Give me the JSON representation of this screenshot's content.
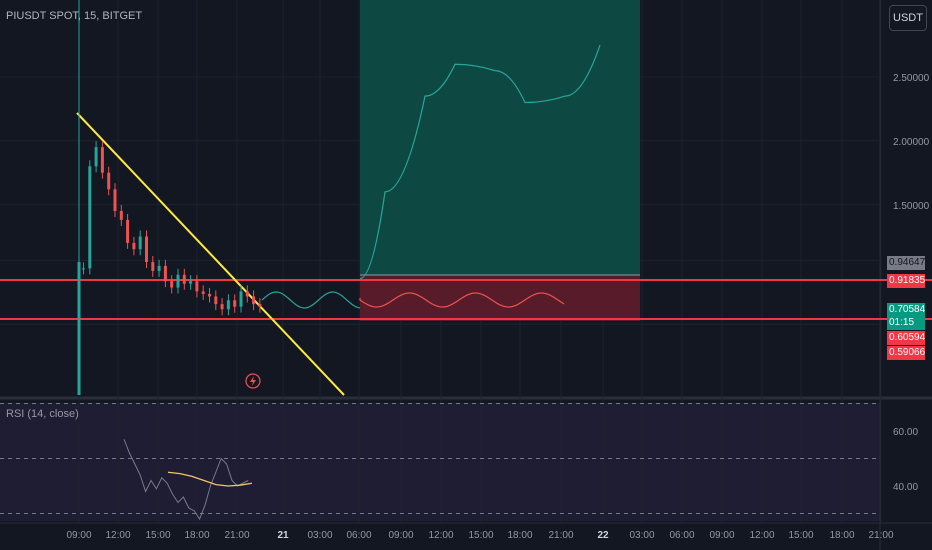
{
  "header": {
    "symbol": "PIUSDT SPOT, 15, BITGET"
  },
  "currency_button": "USDT",
  "rsi": {
    "label": "RSI (14, close)",
    "levels": [
      "60.00",
      "40.00"
    ]
  },
  "price_tags": [
    {
      "text": "0.94647",
      "bg": "#787b86",
      "fg": "#131722"
    },
    {
      "text": "0.91835",
      "bg": "#f23645",
      "fg": "#ffffff"
    },
    {
      "text": "0.70584",
      "bg": "#089981",
      "fg": "#ffffff"
    },
    {
      "text": "01:15",
      "bg": "#089981",
      "fg": "#ffffff"
    },
    {
      "text": "0.60594",
      "bg": "#f23645",
      "fg": "#ffffff"
    },
    {
      "text": "0.59066",
      "bg": "#f23645",
      "fg": "#ffffff"
    }
  ],
  "colors": {
    "bull": "#26a69a",
    "bear": "#ef5350",
    "trendline": "#ffeb3b",
    "level_line": "#f23645",
    "target_zone": "#0d4c44",
    "stop_zone": "#5c1b2a",
    "projection_up": "#26a69a",
    "projection_side": "#ef5350",
    "rsi_line": "#787b86",
    "rsi_ma": "#f5c26b"
  },
  "chart_data": [
    {
      "type": "line",
      "title": "PIUSDT SPOT, 15, BITGET",
      "ylabel": "USDT",
      "y_ticks": [
        "2.50000",
        "2.00000",
        "1.50000"
      ],
      "x_ticks": [
        "09:00",
        "12:00",
        "15:00",
        "18:00",
        "21:00",
        "21",
        "03:00",
        "06:00",
        "09:00",
        "12:00",
        "15:00",
        "18:00",
        "21:00",
        "22",
        "03:00",
        "06:00",
        "09:00",
        "12:00",
        "15:00",
        "18:00",
        "21:00"
      ],
      "horizontal_levels": [
        0.91835,
        0.60594
      ],
      "trendline": {
        "start": [
          "09:00",
          2.2
        ],
        "end": [
          "06:00",
          0.0
        ]
      },
      "candles_close": [
        1.0,
        1.8,
        1.95,
        1.75,
        1.62,
        1.45,
        1.38,
        1.2,
        1.15,
        1.25,
        1.05,
        0.98,
        1.02,
        0.9,
        0.85,
        0.95,
        0.88,
        0.9,
        0.82,
        0.8,
        0.78,
        0.72,
        0.68,
        0.75,
        0.7,
        0.82,
        0.78,
        0.72,
        0.7
      ],
      "projection_up": [
        0.92,
        1.6,
        2.35,
        2.6,
        2.55,
        2.3,
        2.35,
        2.75
      ],
      "projection_sideways": [
        0.8,
        0.75,
        0.8,
        0.73,
        0.8,
        0.72,
        0.78,
        0.8
      ]
    },
    {
      "type": "line",
      "title": "RSI (14, close)",
      "ylim": [
        25,
        75
      ],
      "y_ticks": [
        "60.00",
        "40.00"
      ],
      "values": [
        57,
        52,
        48,
        44,
        38,
        42,
        39,
        43,
        41,
        37,
        34,
        36,
        32,
        31,
        28,
        33,
        40,
        45,
        50,
        48,
        42,
        40,
        41,
        42
      ],
      "ma_values": [
        45,
        44.5,
        43.5,
        42,
        40.5,
        40,
        40.3,
        41
      ]
    }
  ]
}
